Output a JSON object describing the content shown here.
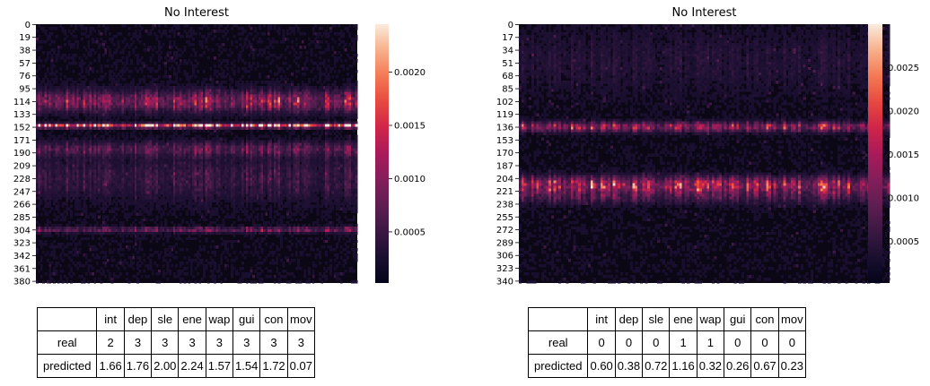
{
  "chart_data": [
    {
      "type": "heatmap",
      "title": "No Interest",
      "y_ticks": [
        "0",
        "19",
        "38",
        "57",
        "76",
        "95",
        "114",
        "133",
        "152",
        "171",
        "190",
        "209",
        "228",
        "247",
        "266",
        "285",
        "304",
        "323",
        "342",
        "361",
        "380"
      ],
      "y_range": [
        0,
        383
      ],
      "colorbar": {
        "ticks": [
          "0.0005",
          "0.0010",
          "0.0015",
          "0.0020"
        ],
        "tick_values": [
          0.0005,
          0.001,
          0.0015,
          0.002
        ],
        "range": [
          2e-05,
          0.00245
        ],
        "colormap": "rocket"
      },
      "bands": [
        {
          "center": 114,
          "width": 14,
          "strength": 0.35
        },
        {
          "center": 150,
          "width": 3,
          "strength": 0.8
        },
        {
          "center": 185,
          "width": 10,
          "strength": 0.2
        },
        {
          "center": 228,
          "width": 30,
          "strength": 0.12
        },
        {
          "center": 304,
          "width": 4,
          "strength": 0.25
        }
      ],
      "table": {
        "columns": [
          "",
          "int",
          "dep",
          "sle",
          "ene",
          "wap",
          "gui",
          "con",
          "mov"
        ],
        "rows": [
          {
            "label": "real",
            "values": [
              "2",
              "3",
              "3",
              "3",
              "3",
              "3",
              "3",
              "3"
            ]
          },
          {
            "label": "predicted",
            "values": [
              "1.66",
              "1.76",
              "2.00",
              "2.24",
              "1.57",
              "1.54",
              "1.72",
              "0.07"
            ]
          }
        ]
      }
    },
    {
      "type": "heatmap",
      "title": "No Interest",
      "y_ticks": [
        "0",
        "17",
        "34",
        "51",
        "68",
        "85",
        "102",
        "119",
        "136",
        "153",
        "170",
        "187",
        "204",
        "221",
        "238",
        "255",
        "272",
        "289",
        "306",
        "323",
        "340"
      ],
      "y_range": [
        0,
        343
      ],
      "colorbar": {
        "ticks": [
          "0.0005",
          "0.0010",
          "0.0015",
          "0.0020",
          "0.0025"
        ],
        "tick_values": [
          0.0005,
          0.001,
          0.0015,
          0.002,
          0.0025
        ],
        "range": [
          2e-05,
          0.003
        ],
        "colormap": "rocket"
      },
      "bands": [
        {
          "center": 136,
          "width": 6,
          "strength": 0.35
        },
        {
          "center": 213,
          "width": 10,
          "strength": 0.4
        },
        {
          "center": 228,
          "width": 10,
          "strength": 0.15
        },
        {
          "center": 50,
          "width": 40,
          "strength": 0.05
        }
      ],
      "table": {
        "columns": [
          "",
          "int",
          "dep",
          "sle",
          "ene",
          "wap",
          "gui",
          "con",
          "mov"
        ],
        "rows": [
          {
            "label": "real",
            "values": [
              "0",
              "0",
              "0",
              "1",
              "1",
              "0",
              "0",
              "0"
            ]
          },
          {
            "label": "predicted",
            "values": [
              "0.60",
              "0.38",
              "0.72",
              "1.16",
              "0.32",
              "0.26",
              "0.67",
              "0.23"
            ]
          }
        ]
      }
    }
  ]
}
